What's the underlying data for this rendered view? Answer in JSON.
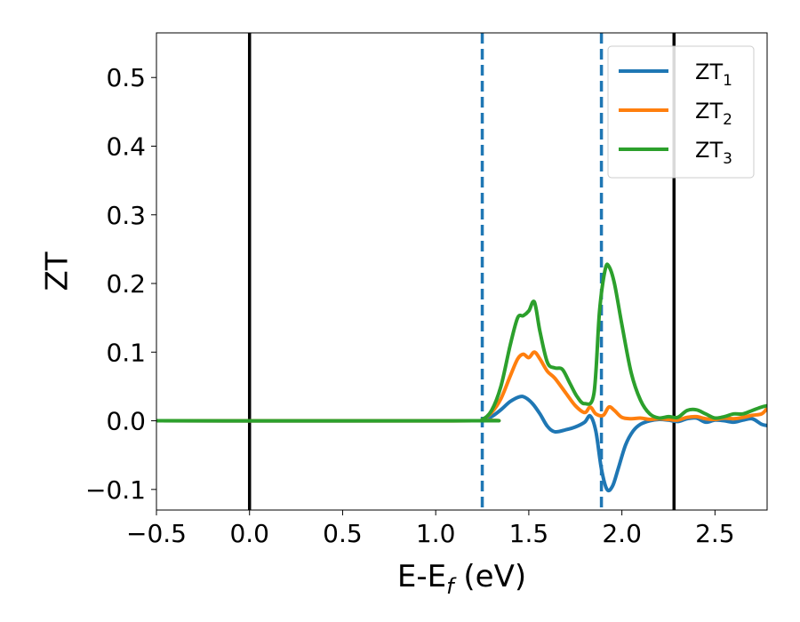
{
  "chart_data": {
    "type": "line",
    "xlabel": {
      "main": "E-E",
      "sub": "f",
      "suffix": " (eV)"
    },
    "ylabel": "ZT",
    "xlim": [
      -0.5,
      2.78
    ],
    "ylim": [
      -0.13,
      0.565
    ],
    "xticks": [
      -0.5,
      0.0,
      0.5,
      1.0,
      1.5,
      2.0,
      2.5
    ],
    "xtick_labels": [
      "−0.5",
      "0.0",
      "0.5",
      "1.0",
      "1.5",
      "2.0",
      "2.5"
    ],
    "yticks": [
      -0.1,
      0.0,
      0.1,
      0.2,
      0.3,
      0.4,
      0.5
    ],
    "ytick_labels": [
      "−0.1",
      "0.0",
      "0.1",
      "0.2",
      "0.3",
      "0.4",
      "0.5"
    ],
    "legend_position": "top-right",
    "vlines": [
      {
        "x": 0.0,
        "style": "solid",
        "color": "#000000"
      },
      {
        "x": 2.28,
        "style": "solid",
        "color": "#000000"
      },
      {
        "x": 1.25,
        "style": "dashed",
        "color": "#1f77b4"
      },
      {
        "x": 1.89,
        "style": "dashed",
        "color": "#1f77b4"
      }
    ],
    "series": [
      {
        "name": "ZT",
        "sub": "1",
        "color": "#1f77b4",
        "x": [
          -0.5,
          1.2,
          1.25,
          1.3,
          1.35,
          1.4,
          1.45,
          1.48,
          1.52,
          1.56,
          1.6,
          1.64,
          1.7,
          1.75,
          1.8,
          1.83,
          1.86,
          1.89,
          1.92,
          1.95,
          1.98,
          2.02,
          2.06,
          2.1,
          2.15,
          2.2,
          2.25,
          2.3,
          2.35,
          2.4,
          2.45,
          2.5,
          2.55,
          2.6,
          2.65,
          2.7,
          2.75,
          2.78
        ],
        "y": [
          0.0,
          0.0,
          0.001,
          0.006,
          0.016,
          0.028,
          0.035,
          0.034,
          0.025,
          0.01,
          -0.008,
          -0.016,
          -0.013,
          -0.009,
          -0.002,
          0.007,
          -0.015,
          -0.07,
          -0.1,
          -0.095,
          -0.07,
          -0.035,
          -0.015,
          -0.005,
          0.0,
          0.002,
          0.001,
          -0.001,
          0.003,
          0.004,
          -0.002,
          0.001,
          0.0,
          -0.002,
          0.001,
          0.003,
          -0.005,
          -0.007
        ]
      },
      {
        "name": "ZT",
        "sub": "2",
        "color": "#ff7f0e",
        "x": [
          -0.5,
          1.2,
          1.25,
          1.3,
          1.35,
          1.4,
          1.44,
          1.47,
          1.5,
          1.53,
          1.56,
          1.6,
          1.64,
          1.7,
          1.75,
          1.8,
          1.83,
          1.86,
          1.9,
          1.93,
          1.96,
          2.0,
          2.05,
          2.1,
          2.15,
          2.2,
          2.25,
          2.3,
          2.35,
          2.4,
          2.45,
          2.5,
          2.55,
          2.6,
          2.65,
          2.7,
          2.75,
          2.78
        ],
        "y": [
          0.0,
          0.0,
          0.002,
          0.012,
          0.032,
          0.065,
          0.09,
          0.097,
          0.092,
          0.1,
          0.09,
          0.072,
          0.062,
          0.04,
          0.022,
          0.012,
          0.02,
          0.01,
          0.008,
          0.02,
          0.015,
          0.005,
          0.003,
          0.004,
          0.002,
          0.003,
          0.002,
          0.001,
          0.005,
          0.006,
          0.003,
          0.002,
          0.004,
          0.003,
          0.005,
          0.008,
          0.01,
          0.018
        ]
      },
      {
        "name": "ZT",
        "sub": "3",
        "color": "#2ca02c",
        "x": [
          -0.5,
          1.2,
          1.25,
          1.3,
          1.35,
          1.4,
          1.44,
          1.47,
          1.5,
          1.53,
          1.56,
          1.6,
          1.64,
          1.68,
          1.72,
          1.76,
          1.8,
          1.85,
          1.88,
          1.91,
          1.93,
          1.96,
          2.0,
          2.05,
          2.1,
          2.15,
          2.2,
          2.25,
          2.3,
          2.35,
          2.4,
          2.45,
          2.5,
          2.55,
          2.6,
          2.65,
          2.7,
          2.75,
          2.78
        ],
        "y": [
          0.0,
          0.0,
          0.002,
          0.015,
          0.05,
          0.11,
          0.15,
          0.153,
          0.16,
          0.173,
          0.13,
          0.085,
          0.077,
          0.075,
          0.055,
          0.035,
          0.025,
          0.04,
          0.16,
          0.22,
          0.225,
          0.2,
          0.14,
          0.07,
          0.03,
          0.01,
          0.004,
          0.006,
          0.005,
          0.015,
          0.016,
          0.01,
          0.004,
          0.006,
          0.01,
          0.01,
          0.015,
          0.02,
          0.022
        ]
      }
    ]
  }
}
